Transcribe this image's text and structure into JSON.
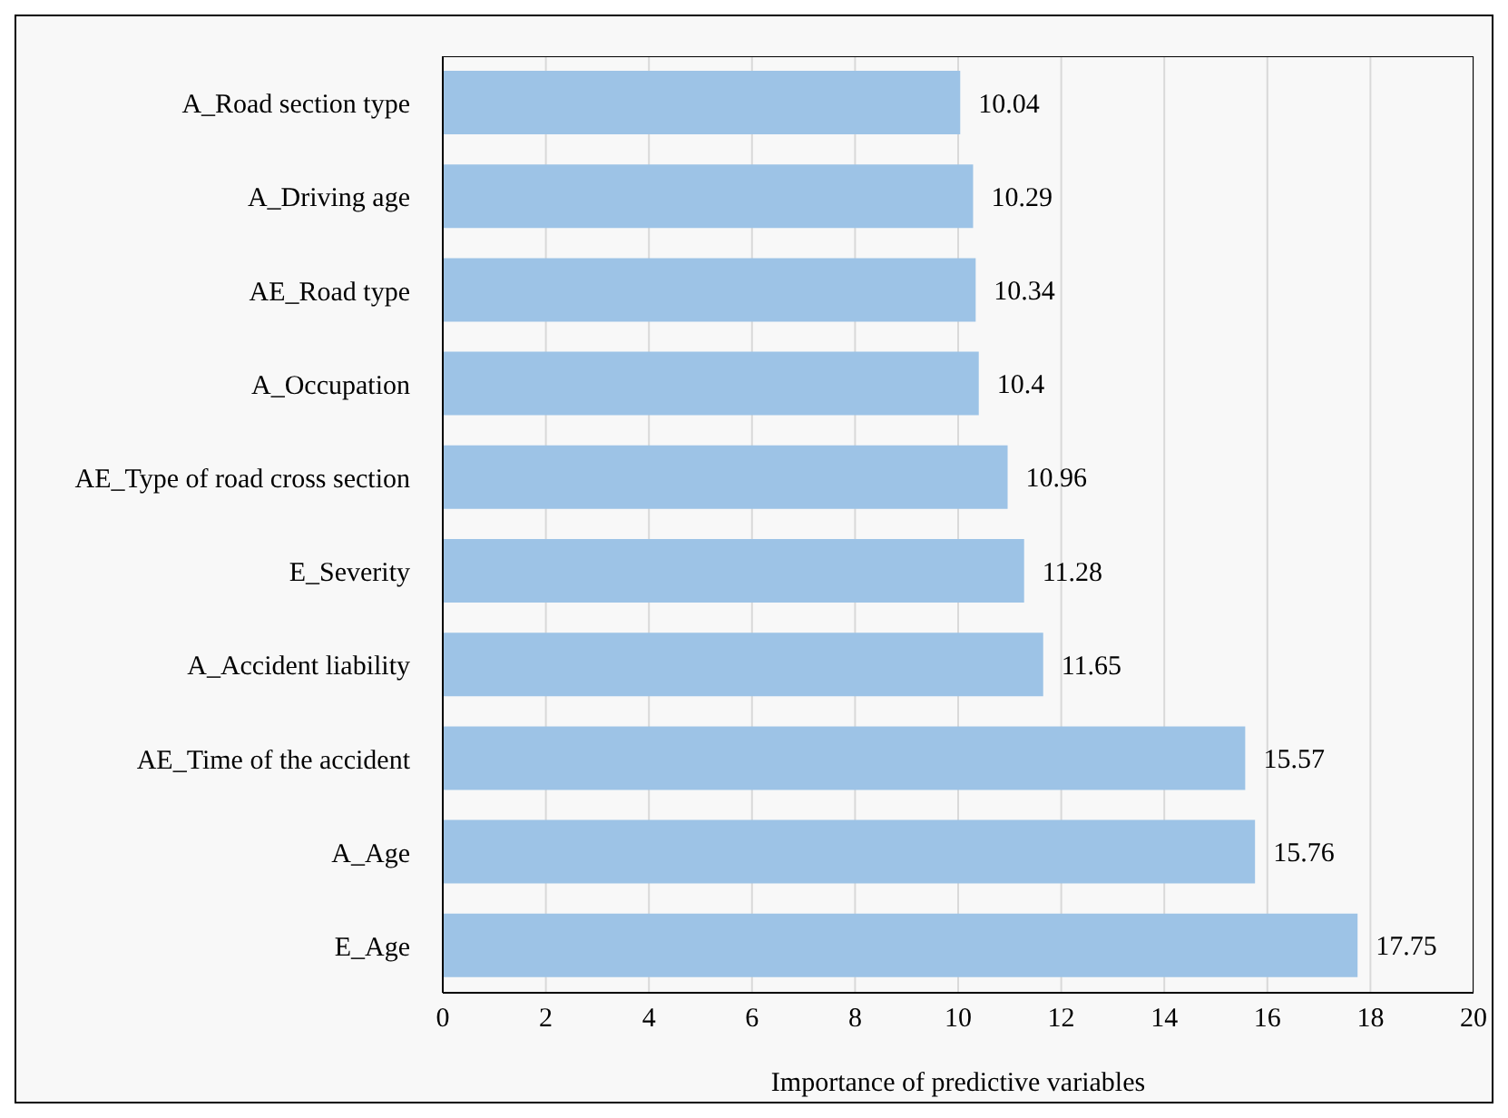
{
  "chart_data": {
    "type": "bar",
    "orientation": "horizontal",
    "xlabel": "Importance of predictive variables",
    "categories": [
      "A_Road section type",
      "A_Driving age",
      "AE_Road type",
      "A_Occupation",
      "AE_Type of road cross section",
      "E_Severity",
      "A_Accident liability",
      "AE_Time of the accident",
      "A_Age",
      "E_Age"
    ],
    "values": [
      10.04,
      10.29,
      10.34,
      10.4,
      10.96,
      11.28,
      11.65,
      15.57,
      15.76,
      17.75
    ],
    "color": "#9dc3e6",
    "xlim": [
      0,
      20
    ],
    "xticks": [
      0,
      2,
      4,
      6,
      8,
      10,
      12,
      14,
      16,
      18,
      20
    ],
    "grid": "x",
    "data_labels": true
  }
}
